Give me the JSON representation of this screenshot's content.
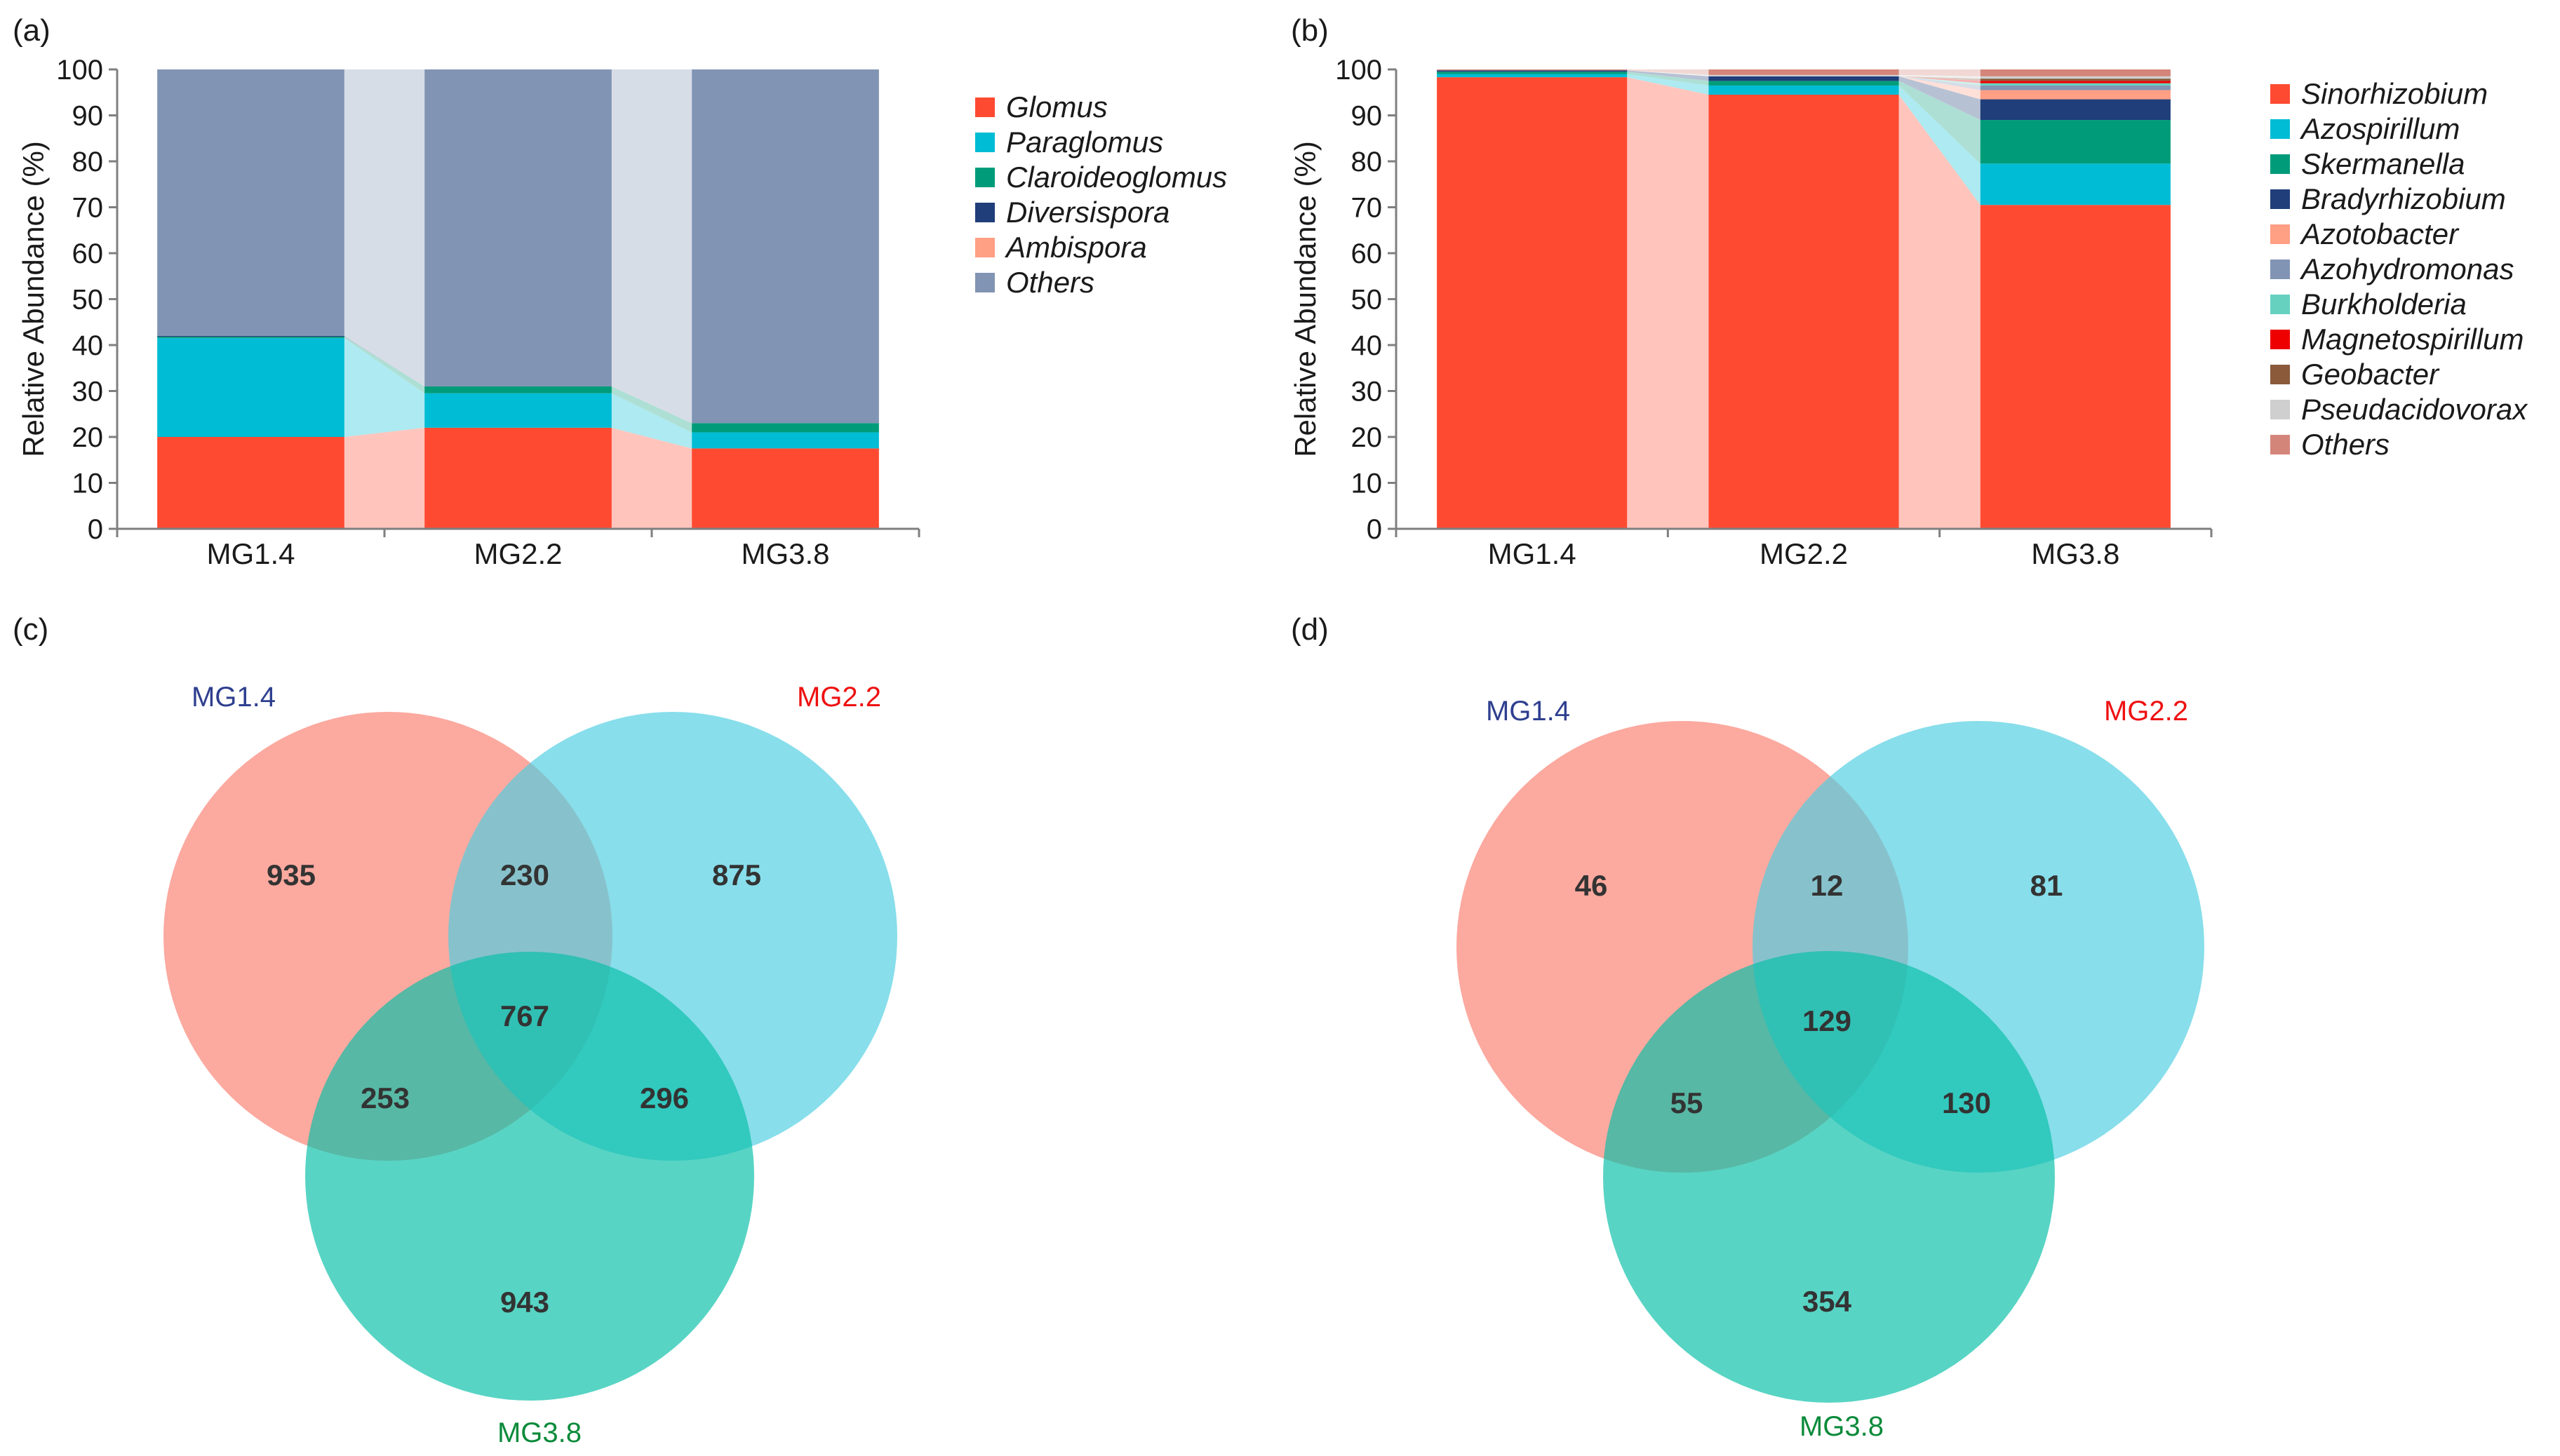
{
  "chart_data": [
    {
      "panel": "(a)",
      "type": "bar",
      "stacked": true,
      "ylabel": "Relative Abundance (%)",
      "ylim": [
        0,
        100
      ],
      "yticks": [
        "0",
        "10",
        "20",
        "30",
        "40",
        "50",
        "60",
        "70",
        "80",
        "90",
        "100"
      ],
      "categories": [
        "MG1.4",
        "MG2.2",
        "MG3.8"
      ],
      "series": [
        {
          "name": "Glomus",
          "color": "#ff4a32",
          "values": [
            20,
            22,
            17.5
          ]
        },
        {
          "name": "Paraglomus",
          "color": "#00bcd4",
          "values": [
            21.5,
            7.5,
            3.5
          ]
        },
        {
          "name": "Claroideoglomus",
          "color": "#009c7a",
          "values": [
            0.3,
            1.5,
            2
          ]
        },
        {
          "name": "Diversispora",
          "color": "#1f3e7a",
          "values": [
            0.2,
            0,
            0
          ]
        },
        {
          "name": "Ambispora",
          "color": "#ff9f84",
          "values": [
            0,
            0,
            0
          ]
        },
        {
          "name": "Others",
          "color": "#8194b4",
          "values": [
            58,
            69,
            77
          ]
        }
      ]
    },
    {
      "panel": "(b)",
      "type": "bar",
      "stacked": true,
      "ylabel": "Relative Abundance (%)",
      "ylim": [
        0,
        100
      ],
      "yticks": [
        "0",
        "10",
        "20",
        "30",
        "40",
        "50",
        "60",
        "70",
        "80",
        "90",
        "100"
      ],
      "categories": [
        "MG1.4",
        "MG2.2",
        "MG3.8"
      ],
      "series": [
        {
          "name": "Sinorhizobium",
          "color": "#ff4a32",
          "values": [
            98.3,
            94.5,
            70.5
          ]
        },
        {
          "name": "Azospirillum",
          "color": "#00bcd4",
          "values": [
            0.7,
            2,
            9
          ]
        },
        {
          "name": "Skermanella",
          "color": "#009c7a",
          "values": [
            0.5,
            1,
            9.5
          ]
        },
        {
          "name": "Bradyrhizobium",
          "color": "#1f3e7a",
          "values": [
            0.3,
            1,
            4.5
          ]
        },
        {
          "name": "Azotobacter",
          "color": "#ff9f84",
          "values": [
            0,
            0,
            2
          ]
        },
        {
          "name": "Azohydromonas",
          "color": "#8194b4",
          "values": [
            0,
            0,
            1
          ]
        },
        {
          "name": "Burkholderia",
          "color": "#66d1bf",
          "values": [
            0,
            0,
            0.5
          ]
        },
        {
          "name": "Magnetospirillum",
          "color": "#ee0000",
          "values": [
            0,
            0,
            0.5
          ]
        },
        {
          "name": "Geobacter",
          "color": "#8a5a3a",
          "values": [
            0,
            0,
            0.5
          ]
        },
        {
          "name": "Pseudacidovorax",
          "color": "#cfcfcf",
          "values": [
            0,
            0.3,
            0.5
          ]
        },
        {
          "name": "Others",
          "color": "#d4857a",
          "values": [
            0.2,
            1.2,
            1.5
          ]
        }
      ]
    },
    {
      "panel": "(c)",
      "type": "venn",
      "sets": [
        {
          "name": "MG1.4",
          "label_color": "#2e3f8f",
          "fill": "#fa8072"
        },
        {
          "name": "MG2.2",
          "label_color": "#ee1111",
          "fill": "#4fcfe2"
        },
        {
          "name": "MG3.8",
          "label_color": "#0a8a3a",
          "fill": "#09bfa8"
        }
      ],
      "regions": {
        "only_a": 935,
        "a_b": 230,
        "only_b": 875,
        "abc": 767,
        "a_c": 253,
        "b_c": 296,
        "only_c": 943
      }
    },
    {
      "panel": "(d)",
      "type": "venn",
      "sets": [
        {
          "name": "MG1.4",
          "label_color": "#2e3f8f",
          "fill": "#fa8072"
        },
        {
          "name": "MG2.2",
          "label_color": "#ee1111",
          "fill": "#4fcfe2"
        },
        {
          "name": "MG3.8",
          "label_color": "#0a8a3a",
          "fill": "#09bfa8"
        }
      ],
      "regions": {
        "only_a": 46,
        "a_b": 12,
        "only_b": 81,
        "abc": 129,
        "a_c": 55,
        "b_c": 130,
        "only_c": 354
      }
    }
  ]
}
